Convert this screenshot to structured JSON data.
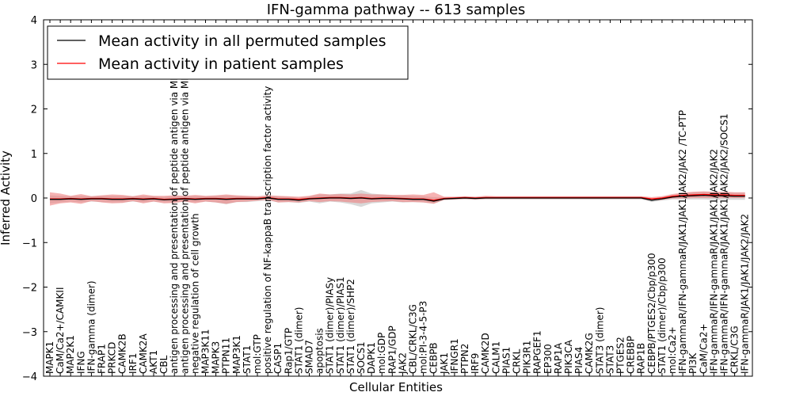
{
  "chart_data": {
    "type": "line",
    "title": "IFN-gamma pathway -- 613 samples",
    "xlabel": "Cellular Entities",
    "ylabel": "Inferred Activity",
    "ylim": [
      -4,
      4
    ],
    "yticks": [
      -4,
      -3,
      -2,
      -1,
      0,
      1,
      2,
      3,
      4
    ],
    "ytick_labels": [
      "−4",
      "−3",
      "−2",
      "−1",
      "0",
      "1",
      "2",
      "3",
      "4"
    ],
    "grid": false,
    "legend_position": "top-left",
    "colors": {
      "permuted": "#000000",
      "patient": "#ff0000",
      "permuted_band": "#c8c8c8",
      "patient_band": "#f08080"
    },
    "entities": [
      "MAPK1",
      "CaM/Ca2+/CAMKII",
      "MAP2K1",
      "IFNG",
      "IFN-gamma (dimer)",
      "FRAP1",
      "PRKCD",
      "CAMK2B",
      "IRF1",
      "CAMK2A",
      "AKT1",
      "CBL",
      "antigen processing and presentation of peptide antigen via MHC class I",
      "antigen processing and presentation of peptide antigen via MHC class II",
      "negative regulation of cell growth",
      "MAP3K11",
      "MAPK3",
      "PTPN11",
      "MAP3K1",
      "STAT1",
      "mol:GTP",
      "positive regulation of NF-kappaB transcription factor activity",
      "CASP1",
      "Rap1/GTP",
      "STAT1 (dimer)",
      "SMAD7",
      "apoptosis",
      "STAT1 (dimer)/PIASy",
      "STAT1 (dimer)/PIAS1",
      "STAT1 (dimer)/SHP2",
      "SOCS1",
      "DAPK1",
      "mol:GDP",
      "RAP1/GDP",
      "JAK2",
      "CBL/CRKL/C3G",
      "mol:PI-3-4-5-P3",
      "CEBPB",
      "JAK1",
      "IFNGR1",
      "PTPN2",
      "IRF9",
      "CAMK2D",
      "CALM1",
      "PIAS1",
      "CRKL",
      "PIK3R1",
      "RAPGEF1",
      "EP300",
      "RAP1A",
      "PIK3CA",
      "PIAS4",
      "CAMK2G",
      "STAT3 (dimer)",
      "STAT3",
      "PTGES2",
      "CREBBP",
      "RAP1B",
      "CEBPB/PTGES2/Cbp/p300",
      "STAT1 (dimer)/Cbp/p300",
      "mol:Ca2+",
      "IFN-gammaR/IFN-gammaR/JAK1/JAK1/JAK2/JAK2 /TC-PTP",
      "PI3K",
      "CaM/Ca2+",
      "IFN-gammaR/IFN-gammaR/JAK1/JAK1/JAK2/JAK2",
      "IFN-gammaR/IFN-gammaR/JAK1/JAK1/JAK2/JAK2/SOCS1",
      "CRKL/C3G",
      "IFN-gammaR/JAK1/JAK1/JAK2/JAK2"
    ],
    "series": [
      {
        "name": "Mean activity in all permuted samples",
        "color": "#000000",
        "values": [
          -0.03,
          -0.03,
          -0.02,
          -0.03,
          -0.02,
          -0.02,
          -0.03,
          -0.03,
          -0.02,
          -0.03,
          -0.02,
          -0.04,
          -0.03,
          -0.02,
          -0.03,
          -0.02,
          -0.02,
          -0.03,
          -0.02,
          -0.02,
          -0.02,
          0.0,
          -0.03,
          -0.03,
          -0.05,
          -0.02,
          -0.01,
          0.0,
          0.0,
          -0.01,
          0.0,
          -0.02,
          -0.01,
          -0.01,
          -0.02,
          -0.03,
          -0.03,
          -0.07,
          -0.02,
          -0.01,
          0.0,
          -0.01,
          0.0,
          0.0,
          0.0,
          0.0,
          0.0,
          0.0,
          0.0,
          0.0,
          0.0,
          0.0,
          0.0,
          0.0,
          0.0,
          0.0,
          0.0,
          0.0,
          -0.05,
          -0.02,
          0.02,
          0.04,
          0.05,
          0.06,
          0.05,
          0.05,
          0.04,
          0.04
        ],
        "band_low": [
          -0.12,
          -0.1,
          -0.08,
          -0.1,
          -0.08,
          -0.09,
          -0.1,
          -0.1,
          -0.08,
          -0.1,
          -0.08,
          -0.1,
          -0.1,
          -0.08,
          -0.1,
          -0.08,
          -0.1,
          -0.14,
          -0.09,
          -0.09,
          -0.07,
          -0.05,
          -0.1,
          -0.09,
          -0.11,
          -0.08,
          -0.12,
          -0.08,
          -0.1,
          -0.14,
          -0.2,
          -0.12,
          -0.1,
          -0.08,
          -0.1,
          -0.09,
          -0.1,
          -0.12,
          -0.05,
          -0.04,
          -0.03,
          -0.04,
          -0.03,
          -0.03,
          -0.03,
          -0.03,
          -0.03,
          -0.03,
          -0.03,
          -0.03,
          -0.03,
          -0.03,
          -0.03,
          -0.03,
          -0.03,
          -0.03,
          -0.03,
          -0.03,
          -0.09,
          -0.06,
          -0.03,
          -0.03,
          -0.03,
          -0.03,
          -0.04,
          -0.04,
          -0.04,
          -0.04
        ],
        "band_high": [
          0.06,
          0.05,
          0.04,
          0.05,
          0.04,
          0.05,
          0.05,
          0.05,
          0.04,
          0.05,
          0.04,
          0.03,
          0.05,
          0.04,
          0.05,
          0.04,
          0.05,
          0.06,
          0.05,
          0.04,
          0.03,
          0.05,
          0.04,
          0.03,
          0.01,
          0.04,
          0.08,
          0.08,
          0.1,
          0.1,
          0.18,
          0.1,
          0.08,
          0.06,
          0.06,
          0.05,
          0.04,
          0.02,
          0.02,
          0.02,
          0.03,
          0.02,
          0.03,
          0.03,
          0.03,
          0.03,
          0.03,
          0.03,
          0.03,
          0.03,
          0.03,
          0.03,
          0.03,
          0.03,
          0.03,
          0.03,
          0.03,
          0.03,
          -0.01,
          0.02,
          0.07,
          0.11,
          0.13,
          0.14,
          0.13,
          0.13,
          0.12,
          0.12
        ]
      },
      {
        "name": "Mean activity in patient samples",
        "color": "#ff0000",
        "values": [
          -0.02,
          -0.02,
          -0.01,
          -0.02,
          -0.01,
          -0.01,
          -0.02,
          -0.02,
          -0.01,
          -0.02,
          -0.01,
          -0.03,
          -0.02,
          -0.01,
          -0.02,
          -0.01,
          -0.01,
          -0.02,
          -0.01,
          -0.01,
          -0.01,
          0.01,
          -0.02,
          -0.02,
          -0.03,
          -0.01,
          0.0,
          0.01,
          0.01,
          0.0,
          0.01,
          -0.01,
          0.0,
          0.0,
          -0.01,
          -0.02,
          -0.02,
          -0.05,
          -0.01,
          0.0,
          0.01,
          0.0,
          0.01,
          0.01,
          0.01,
          0.01,
          0.01,
          0.01,
          0.01,
          0.01,
          0.01,
          0.01,
          0.01,
          0.01,
          0.01,
          0.01,
          0.01,
          0.01,
          -0.02,
          0.0,
          0.04,
          0.06,
          0.07,
          0.08,
          0.07,
          0.07,
          0.06,
          0.06
        ],
        "band_low": [
          -0.17,
          -0.12,
          -0.1,
          -0.13,
          -0.07,
          -0.1,
          -0.12,
          -0.11,
          -0.07,
          -0.12,
          -0.08,
          -0.12,
          -0.11,
          -0.08,
          -0.12,
          -0.08,
          -0.1,
          -0.13,
          -0.09,
          -0.08,
          -0.06,
          -0.04,
          -0.1,
          -0.09,
          -0.1,
          -0.07,
          -0.09,
          -0.07,
          -0.08,
          -0.1,
          -0.12,
          -0.09,
          -0.08,
          -0.07,
          -0.09,
          -0.09,
          -0.1,
          -0.13,
          -0.04,
          -0.03,
          -0.02,
          -0.03,
          -0.02,
          -0.02,
          -0.02,
          -0.02,
          -0.02,
          -0.02,
          -0.02,
          -0.02,
          -0.02,
          -0.02,
          -0.02,
          -0.02,
          -0.02,
          -0.02,
          -0.02,
          -0.02,
          -0.06,
          -0.04,
          -0.01,
          -0.01,
          0.0,
          0.0,
          0.0,
          0.0,
          0.0,
          0.0
        ],
        "band_high": [
          0.13,
          0.1,
          0.05,
          0.09,
          0.04,
          0.06,
          0.08,
          0.07,
          0.04,
          0.08,
          0.05,
          0.05,
          0.06,
          0.05,
          0.07,
          0.05,
          0.06,
          0.08,
          0.06,
          0.05,
          0.04,
          0.06,
          0.05,
          0.04,
          0.03,
          0.05,
          0.1,
          0.08,
          0.09,
          0.08,
          0.1,
          0.08,
          0.08,
          0.07,
          0.07,
          0.08,
          0.07,
          0.13,
          0.03,
          0.03,
          0.04,
          0.03,
          0.05,
          0.04,
          0.04,
          0.04,
          0.04,
          0.04,
          0.04,
          0.04,
          0.04,
          0.04,
          0.04,
          0.04,
          0.04,
          0.04,
          0.04,
          0.04,
          0.02,
          0.04,
          0.09,
          0.12,
          0.14,
          0.15,
          0.14,
          0.14,
          0.13,
          0.13
        ]
      }
    ]
  }
}
